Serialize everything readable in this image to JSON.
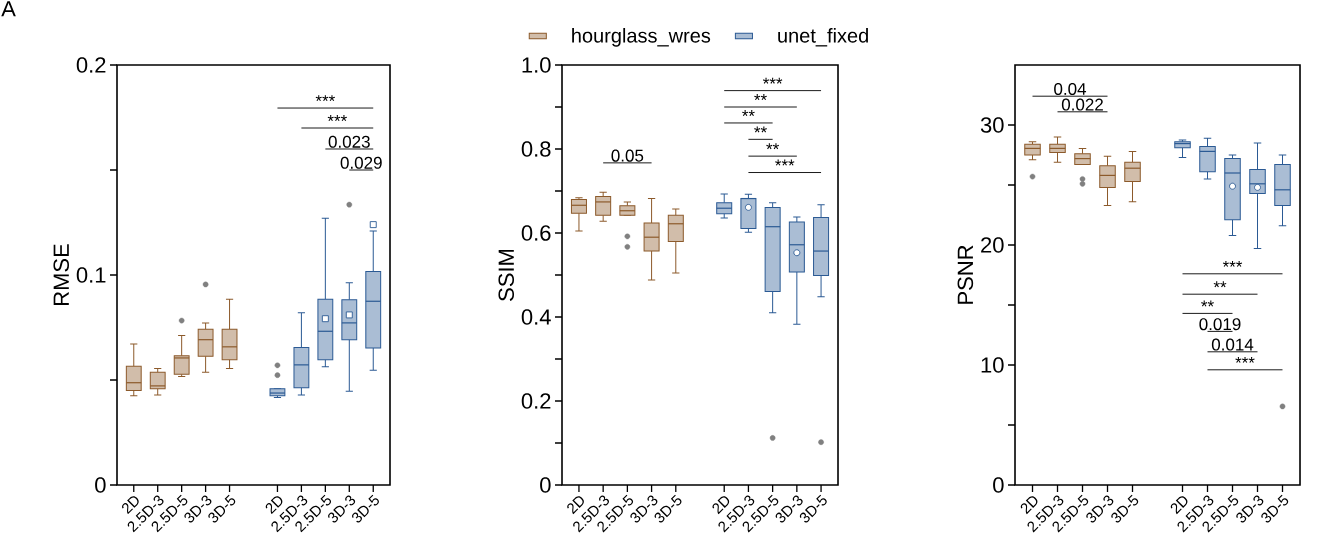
{
  "chart_data": [
    {
      "type": "box",
      "ylabel": "RMSE",
      "ylim": [
        0,
        0.2
      ],
      "yticks": [
        0,
        {
          "value": 0.05,
          "label": null
        },
        0.1,
        {
          "value": 0.15,
          "label": null
        },
        0.2
      ],
      "marker": "square",
      "categories": [
        "2D",
        "2.5D-3",
        "2.5D-5",
        "3D-3",
        "3D-5",
        null,
        "2D",
        "2.5D-3",
        "2.5D-5",
        "3D-3",
        "3D-5"
      ],
      "annotations": [
        "A",
        "***",
        "***",
        "0.023",
        "0.029"
      ],
      "series": [
        {
          "color": "#8c5a2b",
          "boxes": [
            {
              "low": 0.0425,
              "q1": 0.045,
              "median": 0.0487,
              "q3": 0.0565,
              "high": 0.0672
            },
            {
              "low": 0.0428,
              "q1": 0.0458,
              "median": 0.0472,
              "q3": 0.0537,
              "high": 0.0555
            },
            {
              "low": 0.0517,
              "q1": 0.0528,
              "median": 0.0605,
              "q3": 0.0615,
              "high": 0.0712,
              "outliers": [
                0.0783
              ]
            },
            {
              "low": 0.0537,
              "q1": 0.0613,
              "median": 0.0692,
              "q3": 0.0742,
              "high": 0.0772,
              "outliers": [
                0.0955
              ]
            },
            {
              "low": 0.0555,
              "q1": 0.0597,
              "median": 0.0658,
              "q3": 0.0742,
              "high": 0.0885
            },
            null,
            null,
            null,
            null,
            null,
            null
          ]
        },
        {
          "color": "#2b5a94",
          "boxes": [
            null,
            null,
            null,
            null,
            null,
            null,
            {
              "low": 0.0417,
              "q1": 0.0425,
              "median": 0.0438,
              "q3": 0.0458,
              "high": 0.0458,
              "outliers": [
                0.0523,
                0.057
              ]
            },
            {
              "low": 0.0428,
              "q1": 0.0463,
              "median": 0.0572,
              "q3": 0.0655,
              "high": 0.082
            },
            {
              "low": 0.0563,
              "q1": 0.0597,
              "median": 0.0732,
              "q3": 0.0885,
              "high": 0.127,
              "mean": 0.0792
            },
            {
              "low": 0.0447,
              "q1": 0.0692,
              "median": 0.0772,
              "q3": 0.0882,
              "high": 0.0963,
              "mean": 0.081,
              "outliers": [
                0.1335
              ]
            },
            {
              "low": 0.0547,
              "q1": 0.0652,
              "median": 0.0875,
              "q3": 0.1017,
              "high": 0.121,
              "mean": 0.124
            }
          ]
        }
      ]
    },
    {
      "type": "box",
      "ylabel": "SSIM",
      "ylim": [
        0,
        1.0
      ],
      "yticks": [
        0,
        {
          "value": 0.1,
          "label": null
        },
        0.2,
        {
          "value": 0.3,
          "label": null
        },
        0.4,
        {
          "value": 0.5,
          "label": null
        },
        0.6,
        {
          "value": 0.7,
          "label": null
        },
        0.8,
        {
          "value": 0.9,
          "label": null
        },
        {
          "value": 1.0,
          "label": "1.0"
        }
      ],
      "marker": "circle",
      "legend": "top",
      "categories": [
        "2D",
        "2.5D-3",
        "2.5D-5",
        "3D-3",
        "3D-5",
        null,
        "2D",
        "2.5D-3",
        "2.5D-5",
        "3D-3",
        "3D-5"
      ],
      "annotations": [
        "0.05",
        "***",
        "**",
        "**",
        "**",
        "**",
        "***"
      ],
      "series": [
        {
          "name": "hourglass_wres",
          "color": "#8c5a2b",
          "boxes": [
            {
              "low": 0.605,
              "q1": 0.647,
              "median": 0.666,
              "q3": 0.68,
              "high": 0.684
            },
            {
              "low": 0.628,
              "q1": 0.642,
              "median": 0.674,
              "q3": 0.687,
              "high": 0.697
            },
            {
              "low": 0.642,
              "q1": 0.642,
              "median": 0.653,
              "q3": 0.665,
              "high": 0.674,
              "outliers": [
                0.592,
                0.567
              ]
            },
            {
              "low": 0.488,
              "q1": 0.557,
              "median": 0.59,
              "q3": 0.624,
              "high": 0.682
            },
            {
              "low": 0.505,
              "q1": 0.58,
              "median": 0.622,
              "q3": 0.642,
              "high": 0.657
            },
            null,
            null,
            null,
            null,
            null,
            null
          ]
        },
        {
          "name": "unet_fixed",
          "color": "#2b5a94",
          "boxes": [
            null,
            null,
            null,
            null,
            null,
            null,
            {
              "low": 0.636,
              "q1": 0.646,
              "median": 0.659,
              "q3": 0.672,
              "high": 0.693
            },
            {
              "low": 0.602,
              "q1": 0.611,
              "median": 0.682,
              "q3": 0.682,
              "high": 0.692,
              "mean": 0.661
            },
            {
              "low": 0.41,
              "q1": 0.461,
              "median": 0.615,
              "q3": 0.661,
              "high": 0.672,
              "outliers": [
                0.112
              ]
            },
            {
              "low": 0.383,
              "q1": 0.507,
              "median": 0.572,
              "q3": 0.626,
              "high": 0.638,
              "mean": 0.553
            },
            {
              "low": 0.448,
              "q1": 0.499,
              "median": 0.557,
              "q3": 0.637,
              "high": 0.667,
              "outliers": [
                0.102
              ]
            }
          ]
        }
      ]
    },
    {
      "type": "box",
      "ylabel": "PSNR",
      "ylim": [
        0,
        35
      ],
      "yticks": [
        0,
        {
          "value": 5,
          "label": null
        },
        10,
        {
          "value": 15,
          "label": null
        },
        20,
        {
          "value": 25,
          "label": null
        },
        30
      ],
      "marker": "circle",
      "categories": [
        "2D",
        "2.5D-3",
        "2.5D-5",
        "3D-3",
        "3D-5",
        null,
        "2D",
        "2.5D-3",
        "2.5D-5",
        "3D-3",
        "3D-5"
      ],
      "annotations": [
        "0.04",
        "0.022",
        "***",
        "**",
        "**",
        "0.019",
        "0.014",
        "***"
      ],
      "series": [
        {
          "color": "#8c5a2b",
          "boxes": [
            {
              "low": 27.1,
              "q1": 27.5,
              "median": 28.05,
              "q3": 28.4,
              "high": 28.6,
              "outliers": [
                25.7
              ]
            },
            {
              "low": 26.9,
              "q1": 27.7,
              "median": 28.05,
              "q3": 28.4,
              "high": 29.0
            },
            {
              "low": 26.7,
              "q1": 26.7,
              "median": 27.2,
              "q3": 27.6,
              "high": 28.05,
              "outliers": [
                25.5,
                25.1
              ]
            },
            {
              "low": 23.3,
              "q1": 24.8,
              "median": 25.8,
              "q3": 26.6,
              "high": 27.4
            },
            {
              "low": 23.6,
              "q1": 25.3,
              "median": 26.4,
              "q3": 26.9,
              "high": 27.8
            },
            null,
            null,
            null,
            null,
            null,
            null
          ]
        },
        {
          "color": "#2b5a94",
          "boxes": [
            null,
            null,
            null,
            null,
            null,
            null,
            {
              "low": 27.3,
              "q1": 28.1,
              "median": 28.45,
              "q3": 28.6,
              "high": 28.75
            },
            {
              "low": 25.5,
              "q1": 26.1,
              "median": 27.8,
              "q3": 28.2,
              "high": 28.9
            },
            {
              "low": 20.8,
              "q1": 22.1,
              "median": 26.0,
              "q3": 27.2,
              "high": 27.5,
              "mean": 24.9
            },
            {
              "low": 19.7,
              "q1": 24.3,
              "median": 25.1,
              "q3": 26.3,
              "high": 28.5,
              "mean": 24.8
            },
            {
              "low": 21.6,
              "q1": 23.3,
              "median": 24.6,
              "q3": 26.7,
              "high": 27.5,
              "outliers": [
                6.55
              ]
            }
          ]
        }
      ]
    }
  ]
}
